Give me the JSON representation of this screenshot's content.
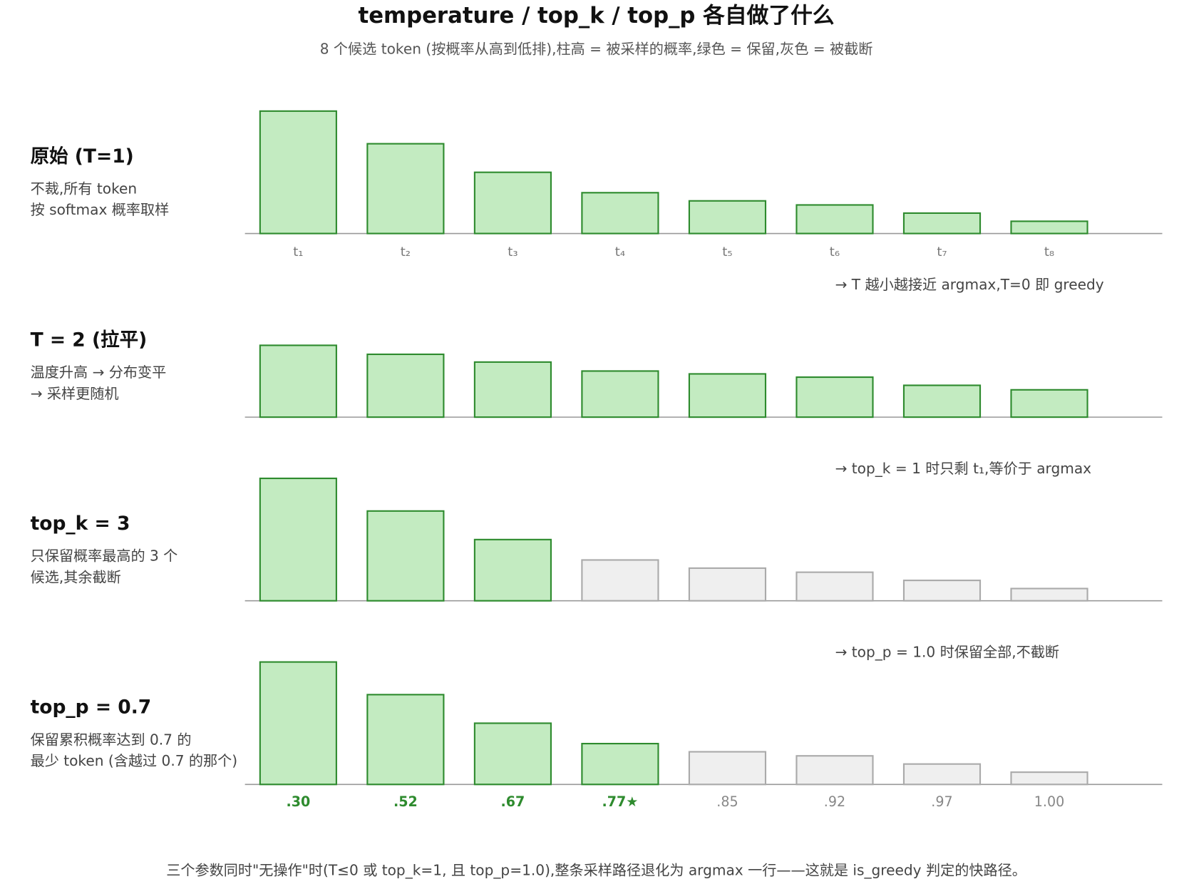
{
  "title": "temperature / top_k / top_p 各自做了什么",
  "subtitle": "8 个候选 token (按概率从高到低排),柱高 = 被采样的概率,绿色 = 保留,灰色 = 被截断",
  "footnote": "三个参数同时\"无操作\"时(T≤0 或 top_k=1, 且 top_p=1.0),整条采样路径退化为 argmax 一行——这就是 is_greedy 判定的快路径。",
  "chart_data": [
    {
      "type": "bar",
      "title": "原始 (T=1)",
      "description": [
        "不裁,所有 token",
        "按 softmax 概率取样"
      ],
      "categories": [
        "t₁",
        "t₂",
        "t₃",
        "t₄",
        "t₅",
        "t₆",
        "t₇",
        "t₈"
      ],
      "values": [
        0.3,
        0.22,
        0.15,
        0.1,
        0.08,
        0.07,
        0.05,
        0.03
      ],
      "ylim": [
        0,
        0.3
      ],
      "colors": [
        "#c3ebc1",
        "#c3ebc1",
        "#c3ebc1",
        "#c3ebc1",
        "#c3ebc1",
        "#c3ebc1",
        "#c3ebc1",
        "#c3ebc1"
      ]
    },
    {
      "type": "bar",
      "title": "T = 2 (拉平)",
      "description": [
        "温度升高 → 分布变平",
        "→ 采样更随机"
      ],
      "annotation": "→ T 越小越接近 argmax,T=0 即 greedy",
      "values": [
        0.176,
        0.154,
        0.135,
        0.113,
        0.106,
        0.098,
        0.078,
        0.067
      ],
      "ylim": [
        0,
        0.3
      ],
      "colors": [
        "#c3ebc1",
        "#c3ebc1",
        "#c3ebc1",
        "#c3ebc1",
        "#c3ebc1",
        "#c3ebc1",
        "#c3ebc1",
        "#c3ebc1"
      ]
    },
    {
      "type": "bar",
      "title": "top_k = 3",
      "description": [
        "只保留概率最高的 3 个",
        "候选,其余截断"
      ],
      "annotation": "→ top_k = 1 时只剩 t₁,等价于 argmax",
      "values": [
        0.3,
        0.22,
        0.15,
        0.1,
        0.08,
        0.07,
        0.05,
        0.03
      ],
      "ylim": [
        0,
        0.3
      ],
      "colors": [
        "#c3ebc1",
        "#c3ebc1",
        "#c3ebc1",
        "#efefef",
        "#efefef",
        "#efefef",
        "#efefef",
        "#efefef"
      ]
    },
    {
      "type": "bar",
      "title": "top_p = 0.7",
      "description": [
        "保留累积概率达到 0.7 的",
        "最少 token (含越过 0.7 的那个)"
      ],
      "annotation": "→ top_p = 1.0 时保留全部,不截断",
      "values": [
        0.3,
        0.22,
        0.15,
        0.1,
        0.08,
        0.07,
        0.05,
        0.03
      ],
      "ylim": [
        0,
        0.3
      ],
      "colors": [
        "#c3ebc1",
        "#c3ebc1",
        "#c3ebc1",
        "#c3ebc1",
        "#efefef",
        "#efefef",
        "#efefef",
        "#efefef"
      ],
      "cumulative_labels": [
        ".30",
        ".52",
        ".67",
        ".77★",
        ".85",
        ".92",
        ".97",
        "1.00"
      ]
    }
  ]
}
